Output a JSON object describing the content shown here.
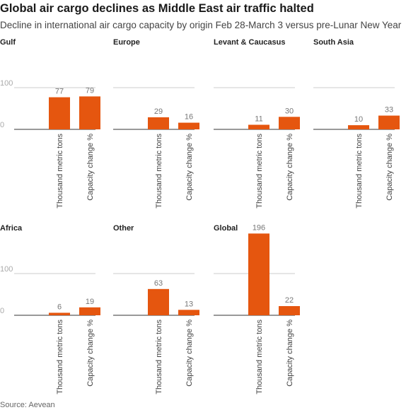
{
  "title": "Global air cargo declines as Middle East air traffic halted",
  "subtitle": "Decline in international air cargo capacity by origin Feb 28-March 3 versus pre-Lunar New Year",
  "source": "Source: Aevean",
  "chart_data": [
    {
      "type": "bar",
      "title": "Gulf",
      "categories": [
        "Thousand metric tons",
        "Capacity change %"
      ],
      "values": [
        77,
        79
      ],
      "color": "#e5560f",
      "ylim": [
        0,
        200
      ],
      "yticks": [
        0,
        100
      ],
      "ytick_labels": true,
      "grid": true
    },
    {
      "type": "bar",
      "title": "Europe",
      "categories": [
        "Thousand metric tons",
        "Capacity change %"
      ],
      "values": [
        29,
        16
      ],
      "color": "#e5560f",
      "ylim": [
        0,
        200
      ],
      "yticks": [
        0,
        100
      ],
      "ytick_labels": false,
      "grid": true
    },
    {
      "type": "bar",
      "title": "Levant & Caucasus",
      "categories": [
        "Thousand metric tons",
        "Capacity change %"
      ],
      "values": [
        11,
        30
      ],
      "color": "#e5560f",
      "ylim": [
        0,
        200
      ],
      "yticks": [
        0,
        100
      ],
      "ytick_labels": false,
      "grid": true
    },
    {
      "type": "bar",
      "title": "South Asia",
      "categories": [
        "Thousand metric tons",
        "Capacity change %"
      ],
      "values": [
        10,
        33
      ],
      "color": "#e5560f",
      "ylim": [
        0,
        200
      ],
      "yticks": [
        0,
        100
      ],
      "ytick_labels": false,
      "grid": true
    },
    {
      "type": "bar",
      "title": "Africa",
      "categories": [
        "Thousand metric tons",
        "Capacity change %"
      ],
      "values": [
        6,
        19
      ],
      "color": "#e5560f",
      "ylim": [
        0,
        200
      ],
      "yticks": [
        0,
        100
      ],
      "ytick_labels": true,
      "grid": true
    },
    {
      "type": "bar",
      "title": "Other",
      "categories": [
        "Thousand metric tons",
        "Capacity change %"
      ],
      "values": [
        63,
        13
      ],
      "color": "#e5560f",
      "ylim": [
        0,
        200
      ],
      "yticks": [
        0,
        100
      ],
      "ytick_labels": false,
      "grid": true
    },
    {
      "type": "bar",
      "title": "Global",
      "categories": [
        "Thousand metric tons",
        "Capacity change %"
      ],
      "values": [
        196,
        22
      ],
      "color": "#e5560f",
      "ylim": [
        0,
        200
      ],
      "yticks": [
        0,
        100
      ],
      "ytick_labels": false,
      "grid": true
    }
  ]
}
